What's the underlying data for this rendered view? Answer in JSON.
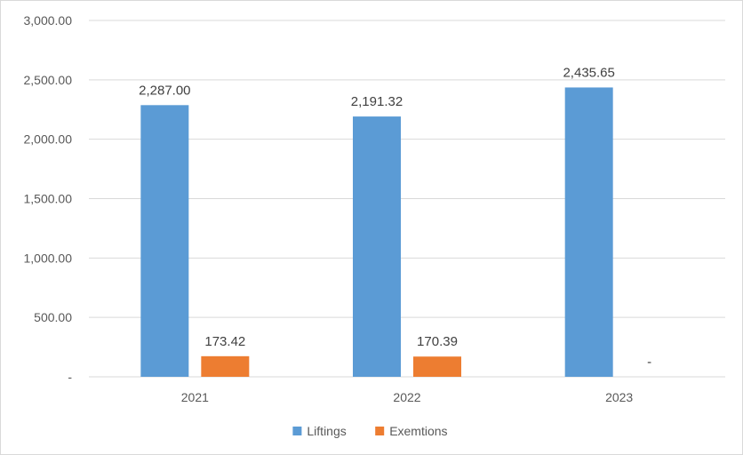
{
  "chart_data": {
    "type": "bar",
    "categories": [
      "2021",
      "2022",
      "2023"
    ],
    "series": [
      {
        "name": "Liftings",
        "color": "#5b9bd5",
        "values": [
          2287.0,
          2191.32,
          2435.65
        ],
        "labels": [
          "2,287.00",
          "2,191.32",
          "2,435.65"
        ]
      },
      {
        "name": "Exemtions",
        "color": "#ed7d31",
        "values": [
          173.42,
          170.39,
          0
        ],
        "labels": [
          "173.42",
          "170.39",
          "-"
        ]
      }
    ],
    "ylim": [
      0,
      3000
    ],
    "yticks": [
      {
        "value": 0,
        "label": "-"
      },
      {
        "value": 500,
        "label": "500.00"
      },
      {
        "value": 1000,
        "label": "1,000.00"
      },
      {
        "value": 1500,
        "label": "1,500.00"
      },
      {
        "value": 2000,
        "label": "2,000.00"
      },
      {
        "value": 2500,
        "label": "2,500.00"
      },
      {
        "value": 3000,
        "label": "3,000.00"
      }
    ],
    "grid": true,
    "legend": "bottom-center"
  }
}
